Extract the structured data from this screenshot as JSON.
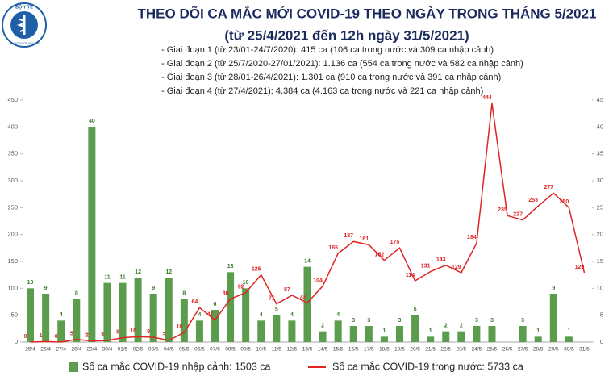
{
  "header": {
    "logo_top": "BỘ Y TẾ",
    "logo_bottom": "MINISTRY OF HEALTH"
  },
  "chart_data": {
    "type": "combo",
    "title": "THEO DÕI CA MẮC MỚI COVID-19 THEO NGÀY TRONG THÁNG 5/2021",
    "subtitle": "(từ 25/4/2021 đến 12h ngày 31/5/2021)",
    "annotations": [
      "- Giai đoạn 1 (từ 23/01-24/7/2020): 415 ca (106 ca trong nước và 309 ca nhập cảnh)",
      "- Giai đoạn 2 (từ 25/7/2020-27/01/2021): 1.136 ca (554 ca trong nước và 582 ca nhập cảnh)",
      "- Giai đoạn 3 (từ 28/01-26/4/2021): 1.301 ca (910 ca trong nước và 391 ca nhập cảnh)",
      "- Giai đoạn 4 (từ 27/4/2021): 4.384 ca (4.163 ca trong nước và 221 ca nhập cảnh)"
    ],
    "categories": [
      "25/4",
      "26/4",
      "27/4",
      "28/4",
      "29/4",
      "30/4",
      "01/5",
      "02/5",
      "03/5",
      "04/5",
      "05/5",
      "06/5",
      "07/5",
      "08/5",
      "09/5",
      "10/5",
      "11/5",
      "12/5",
      "13/5",
      "14/5",
      "15/5",
      "16/5",
      "17/5",
      "18/5",
      "19/5",
      "20/5",
      "21/5",
      "22/5",
      "23/5",
      "24/5",
      "25/5",
      "26/5",
      "27/5",
      "28/5",
      "29/5",
      "30/5",
      "31/5"
    ],
    "series": [
      {
        "name": "Số ca mắc COVID-19 nhập cảnh: 1503 ca",
        "type": "bar",
        "axis": "y2",
        "color": "#5b9d4c",
        "values": [
          10,
          9,
          4,
          8,
          40,
          11,
          11,
          12,
          9,
          12,
          8,
          4,
          6,
          13,
          10,
          4,
          5,
          4,
          14,
          2,
          4,
          3,
          3,
          1,
          3,
          5,
          1,
          2,
          2,
          3,
          3,
          null,
          3,
          1,
          9,
          1,
          null
        ]
      },
      {
        "name": "Số ca mắc COVID-19 trong nước: 5733 ca",
        "type": "line",
        "color": "#e02424",
        "values": [
          0,
          1,
          0,
          5,
          2,
          3,
          8,
          10,
          9,
          3,
          18,
          64,
          41,
          80,
          92,
          125,
          71,
          87,
          73,
          104,
          165,
          187,
          181,
          152,
          175,
          114,
          131,
          143,
          129,
          184,
          444,
          235,
          227,
          253,
          277,
          250,
          129
        ]
      }
    ],
    "ylim": [
      0,
      450
    ],
    "yticks": [
      0,
      50,
      100,
      150,
      200,
      250,
      300,
      350,
      400,
      450
    ],
    "y2lim": [
      0,
      45
    ],
    "y2ticks": [
      0,
      5,
      10,
      15,
      20,
      25,
      30,
      35,
      40,
      45
    ],
    "grid": false,
    "legend": "bottom"
  }
}
